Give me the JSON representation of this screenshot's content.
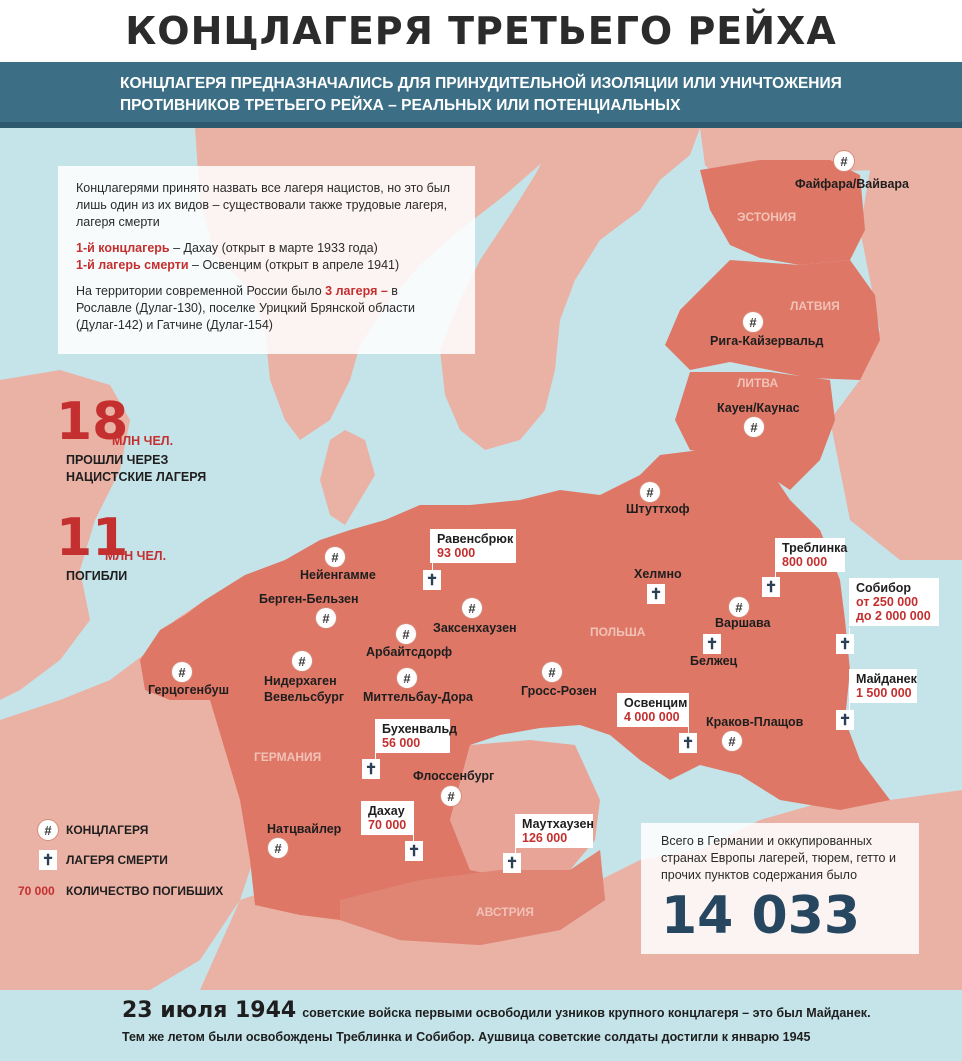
{
  "title": "КОНЦЛАГЕРЯ ТРЕТЬЕГО РЕЙХА",
  "subtitle": "КОНЦЛАГЕРЯ ПРЕДНАЗНАЧАЛИСЬ ДЛЯ ПРИНУДИТЕЛЬНОЙ ИЗОЛЯЦИИ ИЛИ УНИЧТОЖЕНИЯ ПРОТИВНИКОВ ТРЕТЬЕГО РЕЙХА – РЕАЛЬНЫХ ИЛИ ПОТЕНЦИАЛЬНЫХ",
  "info": {
    "p1": "Концлагерями принято назвать все лагеря нацистов, но это был лишь один из их видов – существовали также трудовые лагеря, лагеря смерти",
    "first_cc_label": "1-й концлагерь",
    "first_cc_text": " – Дахау (открыт в марте 1933 года)",
    "first_dc_label": "1-й лагерь смерти",
    "first_dc_text": " – Освенцим (открыт в апреле 1941)",
    "russia_pre": "На территории современной России было ",
    "russia_count": "3 лагеря –",
    "russia_post": " в Рославле (Дулаг-130), поселке Урицкий Брянской области (Дулаг-142) и Гатчине (Дулаг-154)"
  },
  "stats": {
    "passed_number": "18",
    "passed_unit": "МЛН ЧЕЛ.",
    "passed_line1": "ПРОШЛИ ЧЕРЕЗ",
    "passed_line2": "НАЦИСТСКИЕ ЛАГЕРЯ",
    "died_number": "11",
    "died_unit": "МЛН ЧЕЛ.",
    "died_caption": "ПОГИБЛИ"
  },
  "legend": {
    "cc": "КОНЦЛАГЕРЯ",
    "dc": "ЛАГЕРЯ СМЕРТИ",
    "deaths_sample": "70 000",
    "deaths": "КОЛИЧЕСТВО ПОГИБШИХ"
  },
  "icons": {
    "concentration_camp": "grid-circle-icon",
    "death_camp": "cross-icon",
    "cc_glyph": "#",
    "dc_glyph": "✝"
  },
  "colors": {
    "sea": "#c5e4ea",
    "land": "#eab1a5",
    "reich": "#de7766",
    "accent_red": "#c42f2f",
    "navy": "#274761",
    "band": "#3c6f86"
  },
  "countries": {
    "estonia": "ЭСТОНИЯ",
    "latvia": "ЛАТВИЯ",
    "lithuania": "ЛИТВА",
    "poland": "ПОЛЬША",
    "germany": "ГЕРМАНИЯ",
    "austria": "АВСТРИЯ"
  },
  "camps": {
    "vaivara": "Файфара/Вайвара",
    "riga": "Рига-Кайзервальд",
    "kaunas": "Кауен/Каунас",
    "stutthof": "Штуттхоф",
    "ravensbruck_name": "Равенсбрюк",
    "ravensbruck_deaths": "93 000",
    "neuengamme": "Нейенгамме",
    "bergen": "Берген-Бельзен",
    "sachsenhausen": "Заксенхаузен",
    "arbeitsdorf": "Арбайтсдорф",
    "niederhagen": "Нидерхаген\nВевельсбург",
    "herzogenbusch": "Герцогенбуш",
    "mittelbau": "Миттельбау-Дора",
    "gross_rosen": "Гросс-Розен",
    "chelmno": "Хелмно",
    "treblinka_name": "Треблинка",
    "treblinka_deaths": "800 000",
    "sobibor_name": "Собибор",
    "sobibor_deaths1": "от 250 000",
    "sobibor_deaths2": "до 2 000 000",
    "warsaw": "Варшава",
    "belzec": "Белжец",
    "majdanek_name": "Майданек",
    "majdanek_deaths": "1 500 000",
    "auschwitz_name": "Освенцим",
    "auschwitz_deaths": "4 000 000",
    "krakow": "Краков-Плащов",
    "buchenwald_name": "Бухенвальд",
    "buchenwald_deaths": "56 000",
    "flossenburg": "Флоссенбург",
    "dachau_name": "Дахау",
    "dachau_deaths": "70 000",
    "natzweiler": "Натцвайлер",
    "mauthausen_name": "Маутхаузен",
    "mauthausen_deaths": "126 000"
  },
  "total": {
    "text": "Всего в Германии и оккупированных странах Европы лагерей, тюрем, гетто и прочих пунктов содержания было",
    "number": "14 033"
  },
  "bottom": {
    "date": "23 июля 1944",
    "line1": "советские войска первыми освободили узников крупного концлагеря – это был Майданек.",
    "line2": "Тем же летом были освобождены Треблинка и Собибор. Аушвица советские солдаты достигли к январю 1945"
  }
}
